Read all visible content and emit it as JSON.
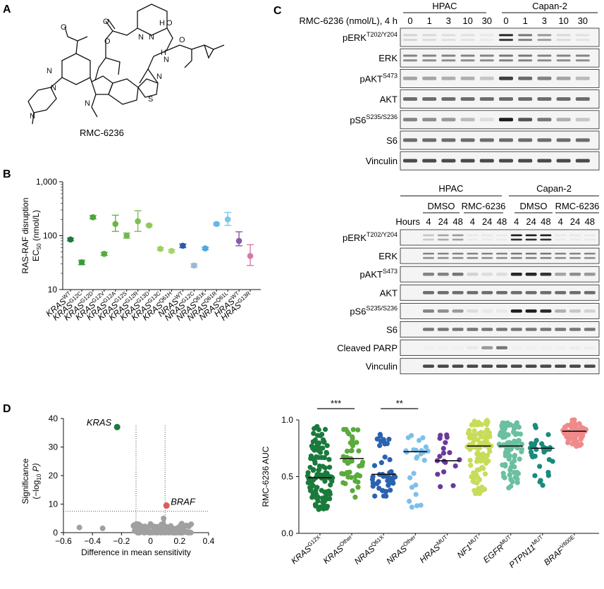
{
  "panels": {
    "a": "A",
    "b": "B",
    "c": "C",
    "d": "D"
  },
  "panel_a": {
    "compound_label": "RMC-6236"
  },
  "panel_c": {
    "top": {
      "header": "RMC-6236 (nmol/L), 4 h",
      "groups": [
        "HPAC",
        "Capan-2"
      ],
      "doses": [
        "0",
        "1",
        "3",
        "10",
        "30"
      ],
      "rows": [
        {
          "label": "pERK",
          "sup": "T202/Y204"
        },
        {
          "label": "ERK",
          "sup": ""
        },
        {
          "label": "pAKT",
          "sup": "S473"
        },
        {
          "label": "AKT",
          "sup": ""
        },
        {
          "label": "pS6",
          "sup": "S235/S236"
        },
        {
          "label": "S6",
          "sup": ""
        },
        {
          "label": "Vinculin",
          "sup": ""
        }
      ]
    },
    "bottom": {
      "groups": [
        "HPAC",
        "Capan-2"
      ],
      "treatments": [
        "DMSO",
        "RMC-6236",
        "DMSO",
        "RMC-6236"
      ],
      "hours_label": "Hours",
      "hours": [
        "4",
        "24",
        "48",
        "4",
        "24",
        "48",
        "4",
        "24",
        "48",
        "4",
        "24",
        "48"
      ],
      "rows": [
        {
          "label": "pERK",
          "sup": "T202/Y204"
        },
        {
          "label": "ERK",
          "sup": ""
        },
        {
          "label": "pAKT",
          "sup": "S473"
        },
        {
          "label": "AKT",
          "sup": ""
        },
        {
          "label": "pS6",
          "sup": "S235/S236"
        },
        {
          "label": "S6",
          "sup": ""
        },
        {
          "label": "Cleaved PARP",
          "sup": ""
        },
        {
          "label": "Vinculin",
          "sup": ""
        }
      ]
    }
  },
  "chart_data": [
    {
      "panel": "B",
      "type": "scatter",
      "ylabel_line1": "RAS-RAF disruption",
      "ylabel_line2": "EC",
      "ylabel_sub": "50",
      "ylabel_line2_rest": " (nmol/L)",
      "yscale": "log",
      "ylim": [
        10,
        1000
      ],
      "yticks": [
        "10",
        "100",
        "1,000"
      ],
      "categories": [
        {
          "gene": "KRAS",
          "variant": "WT",
          "value": 85,
          "err_lo": 80,
          "err_hi": 90,
          "color": "#1a7a3c"
        },
        {
          "gene": "KRAS",
          "variant": "G12C",
          "value": 32,
          "err_lo": 29,
          "err_hi": 35,
          "color": "#3a9a3a"
        },
        {
          "gene": "KRAS",
          "variant": "G12D",
          "value": 220,
          "err_lo": 205,
          "err_hi": 235,
          "color": "#4aa83a"
        },
        {
          "gene": "KRAS",
          "variant": "G12V",
          "value": 46,
          "err_lo": 43,
          "err_hi": 49,
          "color": "#55ad3f"
        },
        {
          "gene": "KRAS",
          "variant": "G12A",
          "value": 165,
          "err_lo": 120,
          "err_hi": 240,
          "color": "#6ab545"
        },
        {
          "gene": "KRAS",
          "variant": "G12S",
          "value": 100,
          "err_lo": 90,
          "err_hi": 112,
          "color": "#70b84a"
        },
        {
          "gene": "KRAS",
          "variant": "G12R",
          "value": 185,
          "err_lo": 120,
          "err_hi": 290,
          "color": "#7dbf4f"
        },
        {
          "gene": "KRAS",
          "variant": "G13D",
          "value": 155,
          "err_lo": 148,
          "err_hi": 163,
          "color": "#8ec85a"
        },
        {
          "gene": "KRAS",
          "variant": "G13C",
          "value": 57,
          "err_lo": 54,
          "err_hi": 60,
          "color": "#9ed063"
        },
        {
          "gene": "KRAS",
          "variant": "Q61H",
          "value": 52,
          "err_lo": 49,
          "err_hi": 55,
          "color": "#a8d46c"
        },
        {
          "gene": "NRAS",
          "variant": "WT",
          "value": 65,
          "err_lo": 60,
          "err_hi": 70,
          "color": "#2a5aa8"
        },
        {
          "gene": "NRAS",
          "variant": "G12C",
          "value": 28,
          "err_lo": 26,
          "err_hi": 30,
          "color": "#9fb8d8"
        },
        {
          "gene": "NRAS",
          "variant": "Q61K",
          "value": 58,
          "err_lo": 55,
          "err_hi": 61,
          "color": "#4fa8e0"
        },
        {
          "gene": "NRAS",
          "variant": "Q61R",
          "value": 165,
          "err_lo": 156,
          "err_hi": 174,
          "color": "#62b6e6"
        },
        {
          "gene": "NRAS",
          "variant": "Q61L",
          "value": 200,
          "err_lo": 155,
          "err_hi": 270,
          "color": "#7ec6ec"
        },
        {
          "gene": "HRAS",
          "variant": "WT",
          "value": 80,
          "err_lo": 65,
          "err_hi": 118,
          "color": "#8a5aa8"
        },
        {
          "gene": "HRAS",
          "variant": "G13R",
          "value": 42,
          "err_lo": 28,
          "err_hi": 68,
          "color": "#d878a8"
        }
      ]
    },
    {
      "panel": "D-left",
      "type": "scatter",
      "xlabel": "Difference in mean sensitivity",
      "ylabel_line1": "Significance",
      "ylabel_line2": "(−log",
      "ylabel_sub": "10",
      "ylabel_rest": " P)",
      "xlim": [
        -0.6,
        0.4
      ],
      "ylim": [
        0,
        40
      ],
      "xticks": [
        "−0.6",
        "−0.4",
        "−0.2",
        "0",
        "0.2",
        "0.4"
      ],
      "yticks": [
        "0",
        "10",
        "20",
        "30",
        "40"
      ],
      "threshold_x": [
        -0.1,
        0.1
      ],
      "threshold_y": 7.5,
      "highlights": [
        {
          "label": "KRAS",
          "x": -0.23,
          "y": 37,
          "color": "#1a7a3c"
        },
        {
          "label": "BRAF",
          "x": 0.11,
          "y": 9.5,
          "color": "#e05a5a"
        }
      ],
      "background_color": "#a0a0a0"
    },
    {
      "panel": "D-right",
      "type": "scatter",
      "ylabel": "RMC-6236 AUC",
      "ylim": [
        0,
        1.0
      ],
      "yticks": [
        "0.0",
        "0.5",
        "1.0"
      ],
      "groups": [
        {
          "gene": "KRAS",
          "variant": "G12X",
          "median": 0.49,
          "min": 0.21,
          "max": 0.95,
          "n": 120,
          "color": "#1a7a3c"
        },
        {
          "gene": "KRAS",
          "variant": "Other",
          "median": 0.66,
          "min": 0.3,
          "max": 0.93,
          "n": 45,
          "color": "#5aaa3c"
        },
        {
          "gene": "NRAS",
          "variant": "Q61X",
          "median": 0.52,
          "min": 0.32,
          "max": 0.88,
          "n": 45,
          "color": "#2a62b0"
        },
        {
          "gene": "NRAS",
          "variant": "Other",
          "median": 0.72,
          "min": 0.2,
          "max": 0.96,
          "n": 25,
          "color": "#7cc0ea"
        },
        {
          "gene": "HRAS",
          "variant": "MUT",
          "median": 0.64,
          "min": 0.38,
          "max": 0.9,
          "n": 18,
          "color": "#6a3a9a"
        },
        {
          "gene": "NF1",
          "variant": "MUT",
          "median": 0.77,
          "min": 0.35,
          "max": 1.0,
          "n": 110,
          "color": "#c8dc5a"
        },
        {
          "gene": "EGFR",
          "variant": "MUT",
          "median": 0.77,
          "min": 0.38,
          "max": 1.0,
          "n": 100,
          "color": "#6ac0a0"
        },
        {
          "gene": "PTPN11",
          "variant": "MUT",
          "median": 0.75,
          "min": 0.42,
          "max": 0.98,
          "n": 30,
          "color": "#1a8a7a"
        },
        {
          "gene": "BRAF",
          "variant": "V600E",
          "median": 0.9,
          "min": 0.76,
          "max": 1.0,
          "n": 70,
          "color": "#f08a8a"
        }
      ],
      "comparisons": [
        {
          "from": 0,
          "to": 1,
          "label": "***"
        },
        {
          "from": 2,
          "to": 3,
          "label": "**"
        }
      ]
    }
  ]
}
